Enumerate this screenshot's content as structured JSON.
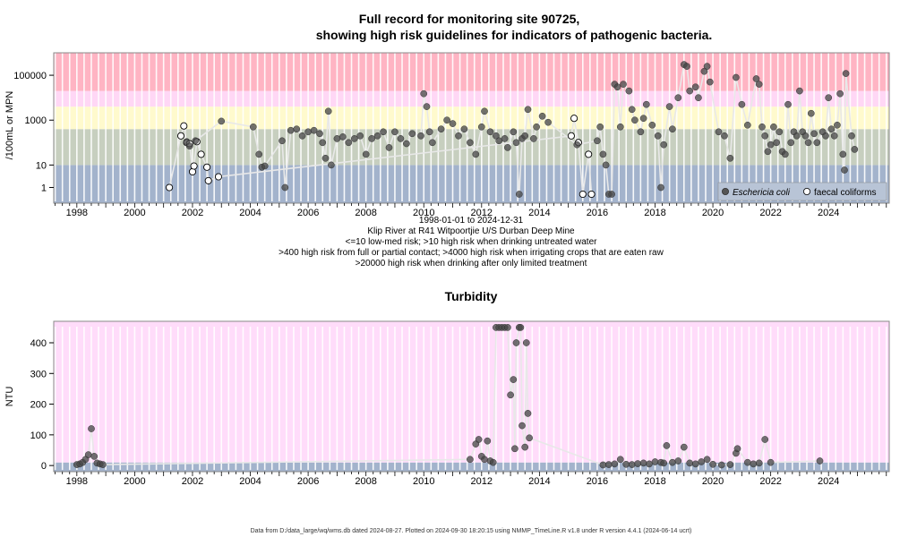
{
  "chart_data": [
    {
      "type": "scatter",
      "title_line1": "Full record for monitoring site 90725,",
      "title_line2": "showing high risk guidelines for indicators of pathogenic bacteria.",
      "ylabel": "/100mL or MPN",
      "y_scale": "log",
      "ylim": [
        0.2,
        1000000
      ],
      "xlim": [
        1997.2,
        2026.1
      ],
      "y_ticks": [
        1,
        10,
        1000,
        100000
      ],
      "y_tick_labels": [
        "1",
        "10",
        "1000",
        "100000"
      ],
      "x_ticks": [
        1998,
        2000,
        2002,
        2004,
        2006,
        2008,
        2010,
        2012,
        2014,
        2016,
        2018,
        2020,
        2022,
        2024
      ],
      "x_tick_labels": [
        "1998",
        "2000",
        "2002",
        "2004",
        "2006",
        "2008",
        "2010",
        "2012",
        "2014",
        "2016",
        "2018",
        "2020",
        "2022",
        "2024"
      ],
      "caption": [
        "1998-01-01 to 2024-12-31",
        "Klip River at R41 Witpoortjie U/S Durban Deep Mine",
        "<=10 low-med risk; >10 high risk when drinking untreated water",
        ">400 high risk from full or partial contact; >4000 high risk when irrigating crops that are eaten raw",
        ">20000 high risk when drinking after only limited treatment"
      ],
      "bands": [
        {
          "from": 0.2,
          "to": 10,
          "color": "#a3b3cc"
        },
        {
          "from": 10,
          "to": 400,
          "color": "#c7cfbf"
        },
        {
          "from": 400,
          "to": 4000,
          "color": "#fffacd"
        },
        {
          "from": 4000,
          "to": 20000,
          "color": "#ffd7f5"
        },
        {
          "from": 20000,
          "to": 1000000,
          "color": "#ffb4c3"
        }
      ],
      "legend": {
        "position": "bottom-right",
        "entries": [
          {
            "label": "Eschericia coli",
            "marker": "filled"
          },
          {
            "label": "faecal coliforms",
            "marker": "open"
          }
        ]
      },
      "series": [
        {
          "name": "faecal coliforms",
          "points": [
            [
              2001.2,
              1
            ],
            [
              2001.6,
              200
            ],
            [
              2001.7,
              550
            ],
            [
              2001.8,
              100
            ],
            [
              2001.9,
              90
            ],
            [
              2002.0,
              5
            ],
            [
              2002.05,
              9
            ],
            [
              2002.15,
              110
            ],
            [
              2002.3,
              30
            ],
            [
              2002.5,
              8
            ],
            [
              2002.55,
              2
            ],
            [
              2002.9,
              3
            ],
            [
              2015.1,
              200
            ],
            [
              2015.2,
              1200
            ],
            [
              2015.35,
              100
            ],
            [
              2015.5,
              0.5
            ],
            [
              2015.7,
              30
            ],
            [
              2015.8,
              0.5
            ]
          ]
        },
        {
          "name": "Eschericia coli",
          "points": [
            [
              2001.8,
              110
            ],
            [
              2001.9,
              70
            ],
            [
              2002.1,
              120
            ],
            [
              2003.0,
              900
            ],
            [
              2004.1,
              500
            ],
            [
              2004.3,
              30
            ],
            [
              2004.4,
              8
            ],
            [
              2004.5,
              9
            ],
            [
              2005.1,
              120
            ],
            [
              2005.2,
              1
            ],
            [
              2005.4,
              350
            ],
            [
              2005.6,
              400
            ],
            [
              2005.8,
              200
            ],
            [
              2006.0,
              300
            ],
            [
              2006.2,
              350
            ],
            [
              2006.4,
              250
            ],
            [
              2006.5,
              100
            ],
            [
              2006.6,
              20
            ],
            [
              2006.7,
              2500
            ],
            [
              2006.8,
              10
            ],
            [
              2007.0,
              150
            ],
            [
              2007.2,
              180
            ],
            [
              2007.4,
              100
            ],
            [
              2007.6,
              150
            ],
            [
              2007.8,
              200
            ],
            [
              2008.0,
              30
            ],
            [
              2008.2,
              150
            ],
            [
              2008.4,
              200
            ],
            [
              2008.6,
              300
            ],
            [
              2008.8,
              60
            ],
            [
              2009.0,
              300
            ],
            [
              2009.2,
              150
            ],
            [
              2009.4,
              90
            ],
            [
              2009.6,
              250
            ],
            [
              2009.9,
              200
            ],
            [
              2010.0,
              15000
            ],
            [
              2010.1,
              4000
            ],
            [
              2010.2,
              300
            ],
            [
              2010.3,
              100
            ],
            [
              2010.6,
              400
            ],
            [
              2010.8,
              1000
            ],
            [
              2011.0,
              700
            ],
            [
              2011.2,
              200
            ],
            [
              2011.4,
              400
            ],
            [
              2011.6,
              100
            ],
            [
              2011.8,
              30
            ],
            [
              2012.0,
              500
            ],
            [
              2012.1,
              2500
            ],
            [
              2012.3,
              300
            ],
            [
              2012.5,
              200
            ],
            [
              2012.6,
              120
            ],
            [
              2012.8,
              150
            ],
            [
              2012.9,
              60
            ],
            [
              2013.1,
              300
            ],
            [
              2013.2,
              100
            ],
            [
              2013.3,
              0.5
            ],
            [
              2013.4,
              150
            ],
            [
              2013.5,
              200
            ],
            [
              2013.6,
              3000
            ],
            [
              2013.8,
              150
            ],
            [
              2013.9,
              500
            ],
            [
              2014.1,
              1500
            ],
            [
              2014.3,
              800
            ],
            [
              2015.3,
              80
            ],
            [
              2016.0,
              120
            ],
            [
              2016.1,
              500
            ],
            [
              2016.2,
              30
            ],
            [
              2016.3,
              10
            ],
            [
              2016.4,
              0.5
            ],
            [
              2016.5,
              0.5
            ],
            [
              2016.6,
              40000
            ],
            [
              2016.7,
              30000
            ],
            [
              2016.8,
              500
            ],
            [
              2016.9,
              40000
            ],
            [
              2017.1,
              20000
            ],
            [
              2017.2,
              3000
            ],
            [
              2017.3,
              1000
            ],
            [
              2017.5,
              300
            ],
            [
              2017.6,
              1200
            ],
            [
              2017.7,
              5000
            ],
            [
              2017.9,
              600
            ],
            [
              2018.1,
              200
            ],
            [
              2018.2,
              1
            ],
            [
              2018.3,
              80
            ],
            [
              2018.5,
              4000
            ],
            [
              2018.6,
              400
            ],
            [
              2018.8,
              10000
            ],
            [
              2019.0,
              300000
            ],
            [
              2019.1,
              250000
            ],
            [
              2019.2,
              20000
            ],
            [
              2019.4,
              30000
            ],
            [
              2019.5,
              10000
            ],
            [
              2019.7,
              150000
            ],
            [
              2019.8,
              250000
            ],
            [
              2019.9,
              50000
            ],
            [
              2020.2,
              300
            ],
            [
              2020.4,
              200
            ],
            [
              2020.6,
              20
            ],
            [
              2020.8,
              80000
            ],
            [
              2021.0,
              5000
            ],
            [
              2021.2,
              600
            ],
            [
              2021.5,
              70000
            ],
            [
              2021.6,
              40000
            ],
            [
              2021.7,
              500
            ],
            [
              2021.8,
              200
            ],
            [
              2021.9,
              40
            ],
            [
              2022.0,
              80
            ],
            [
              2022.1,
              500
            ],
            [
              2022.2,
              100
            ],
            [
              2022.3,
              300
            ],
            [
              2022.4,
              40
            ],
            [
              2022.5,
              30
            ],
            [
              2022.6,
              5000
            ],
            [
              2022.7,
              100
            ],
            [
              2022.8,
              300
            ],
            [
              2022.9,
              200
            ],
            [
              2023.0,
              20000
            ],
            [
              2023.1,
              300
            ],
            [
              2023.2,
              200
            ],
            [
              2023.3,
              100
            ],
            [
              2023.4,
              2000
            ],
            [
              2023.5,
              250
            ],
            [
              2023.6,
              100
            ],
            [
              2023.8,
              300
            ],
            [
              2023.9,
              200
            ],
            [
              2024.0,
              10000
            ],
            [
              2024.1,
              400
            ],
            [
              2024.2,
              200
            ],
            [
              2024.3,
              600
            ],
            [
              2024.4,
              15000
            ],
            [
              2024.5,
              30
            ],
            [
              2024.55,
              6
            ],
            [
              2024.6,
              120000
            ],
            [
              2024.8,
              200
            ],
            [
              2024.9,
              50
            ]
          ]
        }
      ]
    },
    {
      "type": "scatter",
      "title": "Turbidity",
      "ylabel": "NTU",
      "ylim": [
        -20,
        470
      ],
      "xlim": [
        1997.2,
        2026.1
      ],
      "y_ticks": [
        0,
        100,
        200,
        300,
        400
      ],
      "y_tick_labels": [
        "0",
        "100",
        "200",
        "300",
        "400"
      ],
      "x_ticks": [
        1998,
        2000,
        2002,
        2004,
        2006,
        2008,
        2010,
        2012,
        2014,
        2016,
        2018,
        2020,
        2022,
        2024
      ],
      "x_tick_labels": [
        "1998",
        "2000",
        "2002",
        "2004",
        "2006",
        "2008",
        "2010",
        "2012",
        "2014",
        "2016",
        "2018",
        "2020",
        "2022",
        "2024"
      ],
      "bands": [
        {
          "from": -20,
          "to": 10,
          "color": "#a3b3cc"
        },
        {
          "from": 10,
          "to": 470,
          "color": "#ffdcfa"
        }
      ],
      "series": [
        {
          "name": "",
          "points": [
            [
              1998.0,
              3
            ],
            [
              1998.1,
              5
            ],
            [
              1998.2,
              10
            ],
            [
              1998.3,
              20
            ],
            [
              1998.4,
              35
            ],
            [
              1998.5,
              120
            ],
            [
              1998.6,
              30
            ],
            [
              1998.7,
              8
            ],
            [
              1998.8,
              5
            ],
            [
              1998.9,
              3
            ],
            [
              2011.6,
              20
            ],
            [
              2011.8,
              70
            ],
            [
              2011.9,
              85
            ],
            [
              2012.0,
              30
            ],
            [
              2012.1,
              20
            ],
            [
              2012.2,
              80
            ],
            [
              2012.3,
              15
            ],
            [
              2012.4,
              10
            ],
            [
              2012.5,
              450
            ],
            [
              2012.6,
              450
            ],
            [
              2012.7,
              450
            ],
            [
              2012.8,
              450
            ],
            [
              2012.9,
              450
            ],
            [
              2013.0,
              230
            ],
            [
              2013.1,
              280
            ],
            [
              2013.15,
              55
            ],
            [
              2013.2,
              400
            ],
            [
              2013.3,
              450
            ],
            [
              2013.35,
              450
            ],
            [
              2013.4,
              130
            ],
            [
              2013.5,
              60
            ],
            [
              2013.55,
              400
            ],
            [
              2013.6,
              170
            ],
            [
              2013.65,
              90
            ],
            [
              2016.2,
              2
            ],
            [
              2016.4,
              3
            ],
            [
              2016.6,
              5
            ],
            [
              2016.8,
              20
            ],
            [
              2017.0,
              4
            ],
            [
              2017.2,
              3
            ],
            [
              2017.4,
              6
            ],
            [
              2017.6,
              8
            ],
            [
              2017.8,
              5
            ],
            [
              2018.0,
              12
            ],
            [
              2018.2,
              10
            ],
            [
              2018.3,
              8
            ],
            [
              2018.4,
              65
            ],
            [
              2018.6,
              10
            ],
            [
              2018.8,
              15
            ],
            [
              2019.0,
              60
            ],
            [
              2019.2,
              8
            ],
            [
              2019.4,
              5
            ],
            [
              2019.6,
              12
            ],
            [
              2019.8,
              20
            ],
            [
              2020.0,
              4
            ],
            [
              2020.3,
              2
            ],
            [
              2020.6,
              3
            ],
            [
              2020.8,
              40
            ],
            [
              2020.85,
              55
            ],
            [
              2021.2,
              10
            ],
            [
              2021.4,
              5
            ],
            [
              2021.6,
              8
            ],
            [
              2021.8,
              85
            ],
            [
              2022.0,
              10
            ],
            [
              2023.7,
              15
            ]
          ]
        }
      ]
    }
  ],
  "footer": "Data from D:/data_large/wq/wms.db dated 2024-08-27. Plotted on 2024-09-30 18:20:15 using NMMP_TimeLine.R v1.8 under R version 4.4.1 (2024-06-14 ucrt)"
}
